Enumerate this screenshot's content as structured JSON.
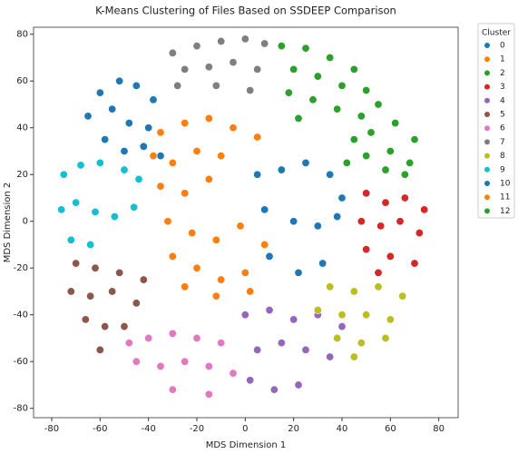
{
  "chart_data": {
    "type": "scatter",
    "title": "K-Means Clustering of Files Based on SSDEEP Comparison",
    "x_label": "MDS Dimension 1",
    "y_label": "MDS Dimension 2",
    "legend_title": "Cluster",
    "legend": "outside-right",
    "xlim": [
      -87.5,
      88
    ],
    "ylim": [
      -84,
      83
    ],
    "xticks": [
      -80,
      -60,
      -40,
      -20,
      0,
      20,
      40,
      60,
      80
    ],
    "yticks": [
      -80,
      -60,
      -40,
      -20,
      0,
      20,
      40,
      60,
      80
    ],
    "series": [
      {
        "name": "0",
        "color": "#1f77b4",
        "x": [
          -60,
          -52,
          -45,
          -38,
          -65,
          -55,
          -48,
          -40,
          -58,
          -50,
          -42,
          -35
        ],
        "y": [
          55,
          60,
          58,
          52,
          45,
          48,
          42,
          40,
          35,
          30,
          32,
          28
        ]
      },
      {
        "name": "1",
        "color": "#ff7f0e",
        "x": [
          -35,
          -25,
          -15,
          -5,
          5,
          -38,
          -30,
          -20,
          -10,
          -35,
          -25,
          -15
        ],
        "y": [
          38,
          42,
          44,
          40,
          36,
          28,
          25,
          30,
          28,
          15,
          12,
          18
        ]
      },
      {
        "name": "2",
        "color": "#2ca02c",
        "x": [
          48,
          55,
          62,
          70,
          45,
          52,
          60,
          68,
          42,
          50,
          58,
          66
        ],
        "y": [
          45,
          50,
          42,
          35,
          35,
          38,
          30,
          25,
          25,
          28,
          22,
          20
        ]
      },
      {
        "name": "3",
        "color": "#d62728",
        "x": [
          50,
          58,
          66,
          74,
          48,
          56,
          64,
          72,
          50,
          60,
          70,
          55
        ],
        "y": [
          12,
          8,
          10,
          5,
          0,
          -2,
          0,
          -5,
          -12,
          -15,
          -18,
          -22
        ]
      },
      {
        "name": "4",
        "color": "#9467bd",
        "x": [
          0,
          10,
          20,
          30,
          40,
          5,
          15,
          25,
          35,
          2,
          12,
          22
        ],
        "y": [
          -40,
          -38,
          -42,
          -40,
          -45,
          -55,
          -52,
          -55,
          -58,
          -68,
          -72,
          -70
        ]
      },
      {
        "name": "5",
        "color": "#8c564b",
        "x": [
          -70,
          -62,
          -52,
          -42,
          -72,
          -64,
          -55,
          -45,
          -66,
          -58,
          -50,
          -60
        ],
        "y": [
          -18,
          -20,
          -22,
          -25,
          -30,
          -32,
          -30,
          -35,
          -42,
          -45,
          -45,
          -55
        ]
      },
      {
        "name": "6",
        "color": "#e377c2",
        "x": [
          -48,
          -40,
          -30,
          -20,
          -10,
          -45,
          -35,
          -25,
          -15,
          -5,
          -30,
          -15
        ],
        "y": [
          -52,
          -50,
          -48,
          -50,
          -52,
          -60,
          -62,
          -60,
          -62,
          -65,
          -72,
          -74
        ]
      },
      {
        "name": "7",
        "color": "#7f7f7f",
        "x": [
          -30,
          -20,
          -10,
          0,
          8,
          -25,
          -15,
          -5,
          5,
          -28,
          -12,
          2
        ],
        "y": [
          72,
          75,
          77,
          78,
          76,
          65,
          66,
          68,
          65,
          58,
          58,
          56
        ]
      },
      {
        "name": "8",
        "color": "#bcbd22",
        "x": [
          35,
          45,
          55,
          65,
          30,
          40,
          50,
          60,
          38,
          48,
          58,
          45
        ],
        "y": [
          -28,
          -30,
          -28,
          -32,
          -38,
          -40,
          -40,
          -42,
          -50,
          -52,
          -50,
          -58
        ]
      },
      {
        "name": "9",
        "color": "#17becf",
        "x": [
          -75,
          -68,
          -60,
          -50,
          -44,
          -76,
          -70,
          -62,
          -54,
          -46,
          -72,
          -64
        ],
        "y": [
          20,
          24,
          25,
          22,
          18,
          5,
          8,
          4,
          2,
          6,
          -8,
          -10
        ]
      },
      {
        "name": "10",
        "color": "#1f77b4",
        "x": [
          5,
          15,
          25,
          35,
          40,
          8,
          20,
          30,
          38,
          10,
          22,
          32
        ],
        "y": [
          20,
          22,
          25,
          20,
          10,
          5,
          0,
          -2,
          2,
          -15,
          -22,
          -18
        ]
      },
      {
        "name": "11",
        "color": "#ff7f0e",
        "x": [
          -32,
          -22,
          -12,
          -2,
          8,
          -30,
          -20,
          -10,
          0,
          -25,
          -12,
          2
        ],
        "y": [
          0,
          -5,
          -8,
          -2,
          -10,
          -15,
          -20,
          -25,
          -22,
          -28,
          -32,
          -30
        ]
      },
      {
        "name": "12",
        "color": "#2ca02c",
        "x": [
          15,
          25,
          35,
          45,
          20,
          30,
          40,
          18,
          28,
          38,
          50,
          22
        ],
        "y": [
          75,
          74,
          70,
          65,
          65,
          62,
          58,
          55,
          52,
          48,
          56,
          44
        ]
      }
    ]
  }
}
